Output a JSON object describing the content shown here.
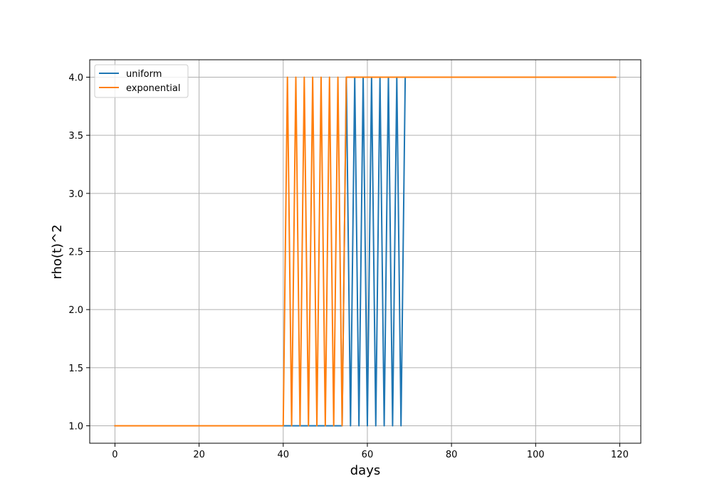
{
  "chart_data": {
    "type": "line",
    "title": "",
    "xlabel": "days",
    "ylabel": "rho(t)^2",
    "xlim": [
      -6,
      125
    ],
    "ylim": [
      0.85,
      4.15
    ],
    "xticks": [
      0,
      20,
      40,
      60,
      80,
      100,
      120
    ],
    "yticks": [
      1.0,
      1.5,
      2.0,
      2.5,
      3.0,
      3.5,
      4.0
    ],
    "xtick_labels": [
      "0",
      "20",
      "40",
      "60",
      "80",
      "100",
      "120"
    ],
    "ytick_labels": [
      "1.0",
      "1.5",
      "2.0",
      "2.5",
      "3.0",
      "3.5",
      "4.0"
    ],
    "grid": true,
    "legend_position": "top-left",
    "series": [
      {
        "name": "uniform",
        "color": "#1f77b4",
        "x": [
          0,
          54,
          55,
          56,
          57,
          58,
          59,
          60,
          61,
          62,
          63,
          64,
          65,
          66,
          67,
          68,
          69,
          119
        ],
        "y": [
          1.0,
          1.0,
          4.0,
          1.0,
          4.0,
          1.0,
          4.0,
          1.0,
          4.0,
          1.0,
          4.0,
          1.0,
          4.0,
          1.0,
          4.0,
          1.0,
          4.0,
          4.0
        ]
      },
      {
        "name": "exponential",
        "color": "#ff7f0e",
        "x": [
          0,
          40,
          41,
          42,
          43,
          44,
          45,
          46,
          47,
          48,
          49,
          50,
          51,
          52,
          53,
          54,
          55,
          119
        ],
        "y": [
          1.0,
          1.0,
          4.0,
          1.0,
          4.0,
          1.0,
          4.0,
          1.0,
          4.0,
          1.0,
          4.0,
          1.0,
          4.0,
          1.0,
          4.0,
          1.0,
          4.0,
          4.0
        ]
      }
    ]
  }
}
